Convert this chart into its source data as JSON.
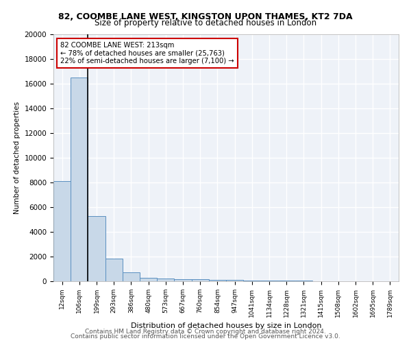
{
  "title1": "82, COOMBE LANE WEST, KINGSTON UPON THAMES, KT2 7DA",
  "title2": "Size of property relative to detached houses in London",
  "xlabel": "Distribution of detached houses by size in London",
  "ylabel": "Number of detached properties",
  "bar_values": [
    8100,
    16500,
    5300,
    1850,
    700,
    300,
    200,
    175,
    150,
    125,
    100,
    75,
    75,
    50,
    50,
    25,
    25,
    25,
    25,
    15
  ],
  "x_labels": [
    "12sqm",
    "106sqm",
    "199sqm",
    "293sqm",
    "386sqm",
    "480sqm",
    "573sqm",
    "667sqm",
    "760sqm",
    "854sqm",
    "947sqm",
    "1041sqm",
    "1134sqm",
    "1228sqm",
    "1321sqm",
    "1415sqm",
    "1508sqm",
    "1602sqm",
    "1695sqm",
    "1789sqm"
  ],
  "bar_color": "#c8d8e8",
  "bar_edge_color": "#5a8fc0",
  "vline_x_index": 2,
  "vline_color": "#000000",
  "annotation_title": "82 COOMBE LANE WEST: 213sqm",
  "annotation_line1": "← 78% of detached houses are smaller (25,763)",
  "annotation_line2": "22% of semi-detached houses are larger (7,100) →",
  "annotation_box_color": "#ffffff",
  "annotation_box_edge": "#cc0000",
  "background_color": "#eef2f8",
  "grid_color": "#ffffff",
  "ylim": [
    0,
    20000
  ],
  "yticks": [
    0,
    2000,
    4000,
    6000,
    8000,
    10000,
    12000,
    14000,
    16000,
    18000,
    20000
  ],
  "footer1": "Contains HM Land Registry data © Crown copyright and database right 2024.",
  "footer2": "Contains public sector information licensed under the Open Government Licence v3.0."
}
